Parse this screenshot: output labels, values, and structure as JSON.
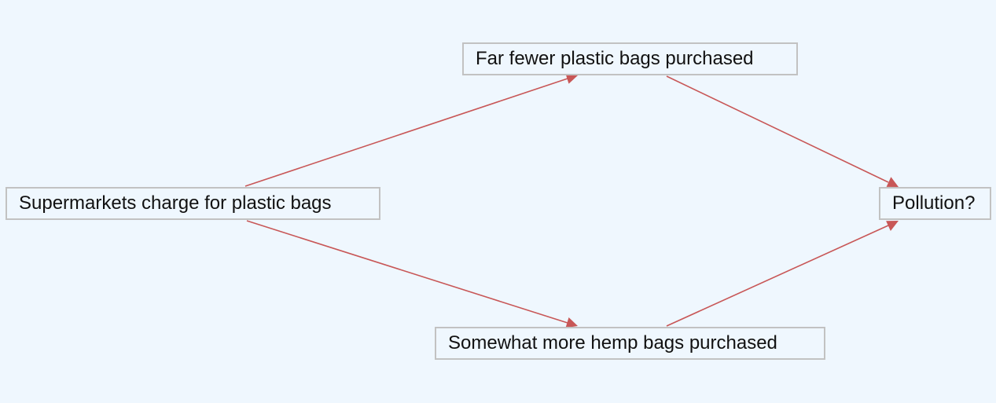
{
  "diagram": {
    "edge_color": "#c85757",
    "nodes": {
      "supermarkets": {
        "label": "Supermarkets charge for plastic bags"
      },
      "plastic": {
        "label": "Far fewer plastic bags purchased"
      },
      "hemp": {
        "label": "Somewhat more hemp bags purchased"
      },
      "pollution": {
        "label": "Pollution?"
      }
    },
    "edges": [
      {
        "from": "supermarkets",
        "to": "plastic"
      },
      {
        "from": "supermarkets",
        "to": "hemp"
      },
      {
        "from": "plastic",
        "to": "pollution"
      },
      {
        "from": "hemp",
        "to": "pollution"
      }
    ]
  }
}
